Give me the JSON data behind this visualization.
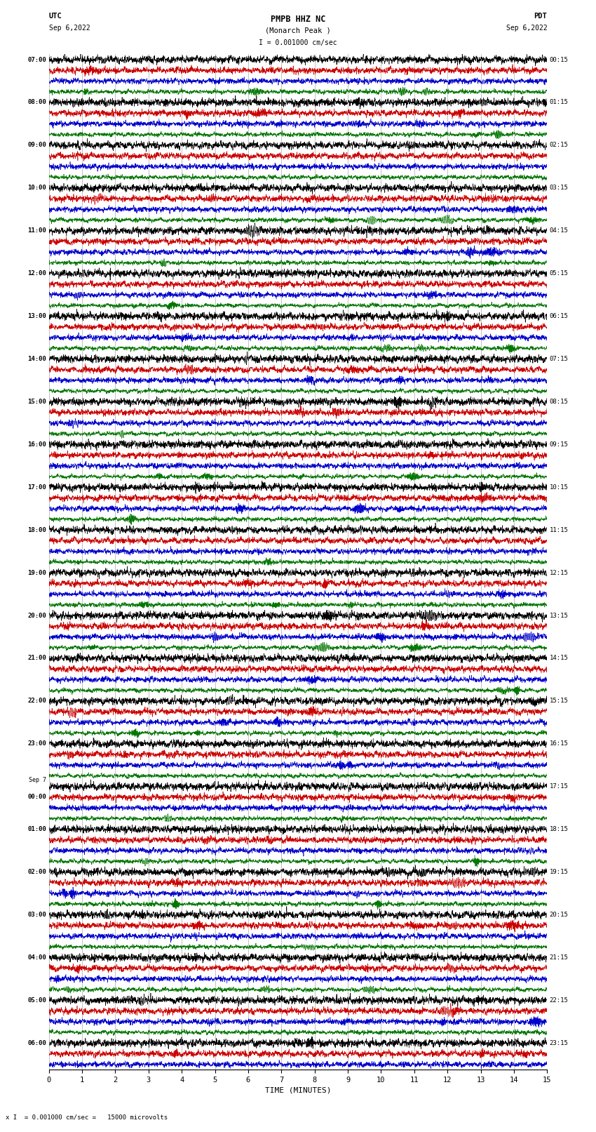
{
  "title_line1": "PMPB HHZ NC",
  "title_line2": "(Monarch Peak )",
  "scale_text": "I = 0.001000 cm/sec",
  "utc_label": "UTC",
  "utc_date": "Sep 6,2022",
  "pdt_label": "PDT",
  "pdt_date": "Sep 6,2022",
  "xlabel": "TIME (MINUTES)",
  "footer_text": "x I  = 0.001000 cm/sec =   15000 microvolts",
  "xmin": 0,
  "xmax": 15,
  "xticks": [
    0,
    1,
    2,
    3,
    4,
    5,
    6,
    7,
    8,
    9,
    10,
    11,
    12,
    13,
    14,
    15
  ],
  "bg_color": "#ffffff",
  "trace_colors": [
    "#000000",
    "#cc0000",
    "#0000cc",
    "#007700"
  ],
  "grid_color": "#aaaaaa",
  "traces_per_hour": 4,
  "left_times_utc": [
    "07:00",
    "",
    "",
    "",
    "08:00",
    "",
    "",
    "",
    "09:00",
    "",
    "",
    "",
    "10:00",
    "",
    "",
    "",
    "11:00",
    "",
    "",
    "",
    "12:00",
    "",
    "",
    "",
    "13:00",
    "",
    "",
    "",
    "14:00",
    "",
    "",
    "",
    "15:00",
    "",
    "",
    "",
    "16:00",
    "",
    "",
    "",
    "17:00",
    "",
    "",
    "",
    "18:00",
    "",
    "",
    "",
    "19:00",
    "",
    "",
    "",
    "20:00",
    "",
    "",
    "",
    "21:00",
    "",
    "",
    "",
    "22:00",
    "",
    "",
    "",
    "23:00",
    "",
    "",
    "",
    "Sep 7",
    "00:00",
    "",
    "",
    "01:00",
    "",
    "",
    "",
    "02:00",
    "",
    "",
    "",
    "03:00",
    "",
    "",
    "",
    "04:00",
    "",
    "",
    "",
    "05:00",
    "",
    "",
    "",
    "06:00",
    "",
    ""
  ],
  "right_times_pdt": [
    "00:15",
    "",
    "",
    "",
    "01:15",
    "",
    "",
    "",
    "02:15",
    "",
    "",
    "",
    "03:15",
    "",
    "",
    "",
    "04:15",
    "",
    "",
    "",
    "05:15",
    "",
    "",
    "",
    "06:15",
    "",
    "",
    "",
    "07:15",
    "",
    "",
    "",
    "08:15",
    "",
    "",
    "",
    "09:15",
    "",
    "",
    "",
    "10:15",
    "",
    "",
    "",
    "11:15",
    "",
    "",
    "",
    "12:15",
    "",
    "",
    "",
    "13:15",
    "",
    "",
    "",
    "14:15",
    "",
    "",
    "",
    "15:15",
    "",
    "",
    "",
    "16:15",
    "",
    "",
    "",
    "17:15",
    "",
    "",
    "",
    "18:15",
    "",
    "",
    "",
    "19:15",
    "",
    "",
    "",
    "20:15",
    "",
    "",
    "",
    "21:15",
    "",
    "",
    "",
    "22:15",
    "",
    "",
    "",
    "23:15",
    "",
    ""
  ]
}
